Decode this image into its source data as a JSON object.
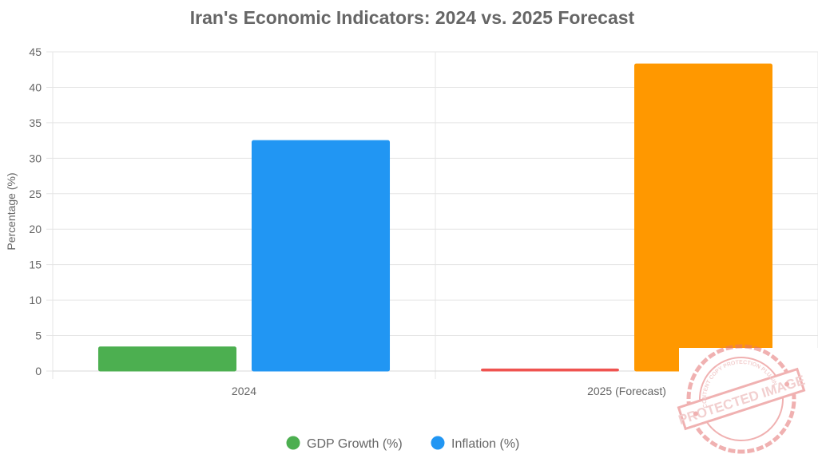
{
  "chart_data": {
    "type": "bar",
    "title": "Iran's Economic Indicators: 2024 vs. 2025 Forecast",
    "ylabel": "Percentage (%)",
    "xlabel": "",
    "categories": [
      "2024",
      "2025 (Forecast)"
    ],
    "ylim": [
      0,
      45
    ],
    "yticks": [
      0,
      5,
      10,
      15,
      20,
      25,
      30,
      35,
      40,
      45
    ],
    "grid": true,
    "legend_position": "bottom",
    "series": [
      {
        "name": "GDP Growth (%)",
        "values": [
          3.4,
          0.3
        ],
        "colors": [
          "#4caf50",
          "#ef5350"
        ]
      },
      {
        "name": "Inflation (%)",
        "values": [
          32.5,
          43.3
        ],
        "colors": [
          "#2196f3",
          "#ff9800"
        ]
      }
    ],
    "legend": [
      {
        "label": "GDP Growth (%)",
        "color": "#4caf50"
      },
      {
        "label": "Inflation (%)",
        "color": "#2196f3"
      }
    ]
  },
  "watermark": {
    "text": "PROTECTED IMAGE",
    "ring_text": "CONTENT COPY PROTECTION PLUGIN",
    "color": "#e57373"
  }
}
